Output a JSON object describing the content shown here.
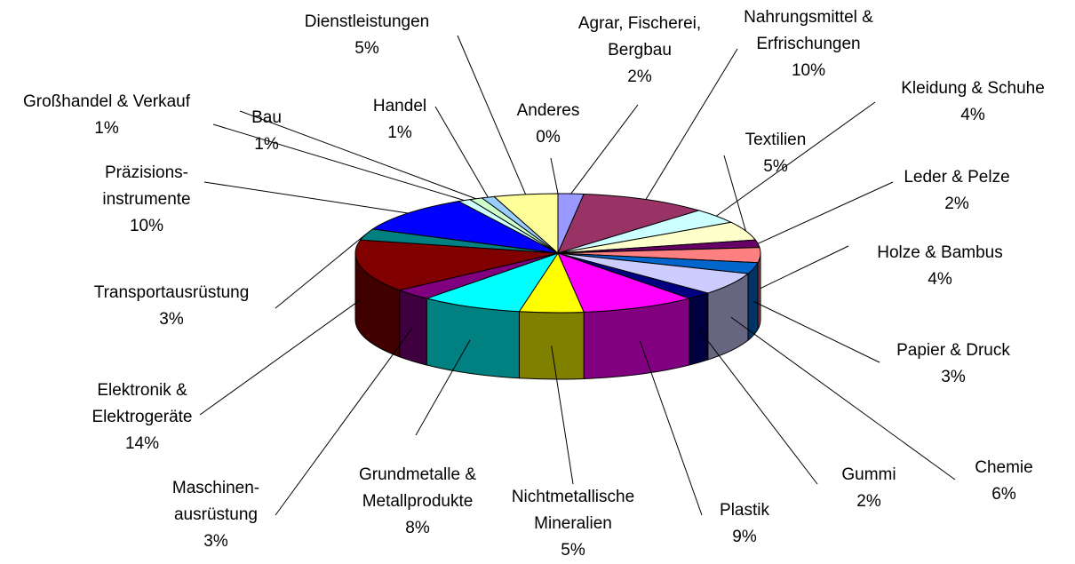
{
  "chart_data": {
    "type": "pie3d",
    "categories": [
      "Anderes",
      "Agrar, Fischerei, Bergbau",
      "Nahrungsmittel & Erfrischungen",
      "Kleidung & Schuhe",
      "Textilien",
      "Leder & Pelze",
      "Holze & Bambus",
      "Papier & Druck",
      "Chemie",
      "Gummi",
      "Plastik",
      "Nichtmetallische Mineralien",
      "Grundmetalle & Metallprodukte",
      "Maschinen-ausrüstung",
      "Elektronik & Elektrogeräte",
      "Transportausrüstung",
      "Präzisions-instrumente",
      "Großhandel & Verkauf",
      "Bau",
      "Handel",
      "Dienstleistungen"
    ],
    "values": [
      0,
      2,
      10,
      4,
      5,
      2,
      4,
      3,
      6,
      2,
      9,
      5,
      8,
      3,
      14,
      3,
      10,
      1,
      1,
      1,
      5
    ],
    "value_labels": [
      "0%",
      "2%",
      "10%",
      "4%",
      "5%",
      "2%",
      "4%",
      "3%",
      "6%",
      "2%",
      "9%",
      "5%",
      "8%",
      "3%",
      "14%",
      "3%",
      "10%",
      "1%",
      "1%",
      "1%",
      "5%"
    ],
    "colors": [
      "#ff99cc",
      "#9999ff",
      "#993366",
      "#ccffff",
      "#ffffcc",
      "#660066",
      "#ff8080",
      "#0066cc",
      "#ccccff",
      "#000080",
      "#ff00ff",
      "#ffff00",
      "#00ffff",
      "#800080",
      "#800000",
      "#008080",
      "#0000ff",
      "#ccffff",
      "#ccffcc",
      "#99ccff",
      "#ffff99"
    ]
  }
}
